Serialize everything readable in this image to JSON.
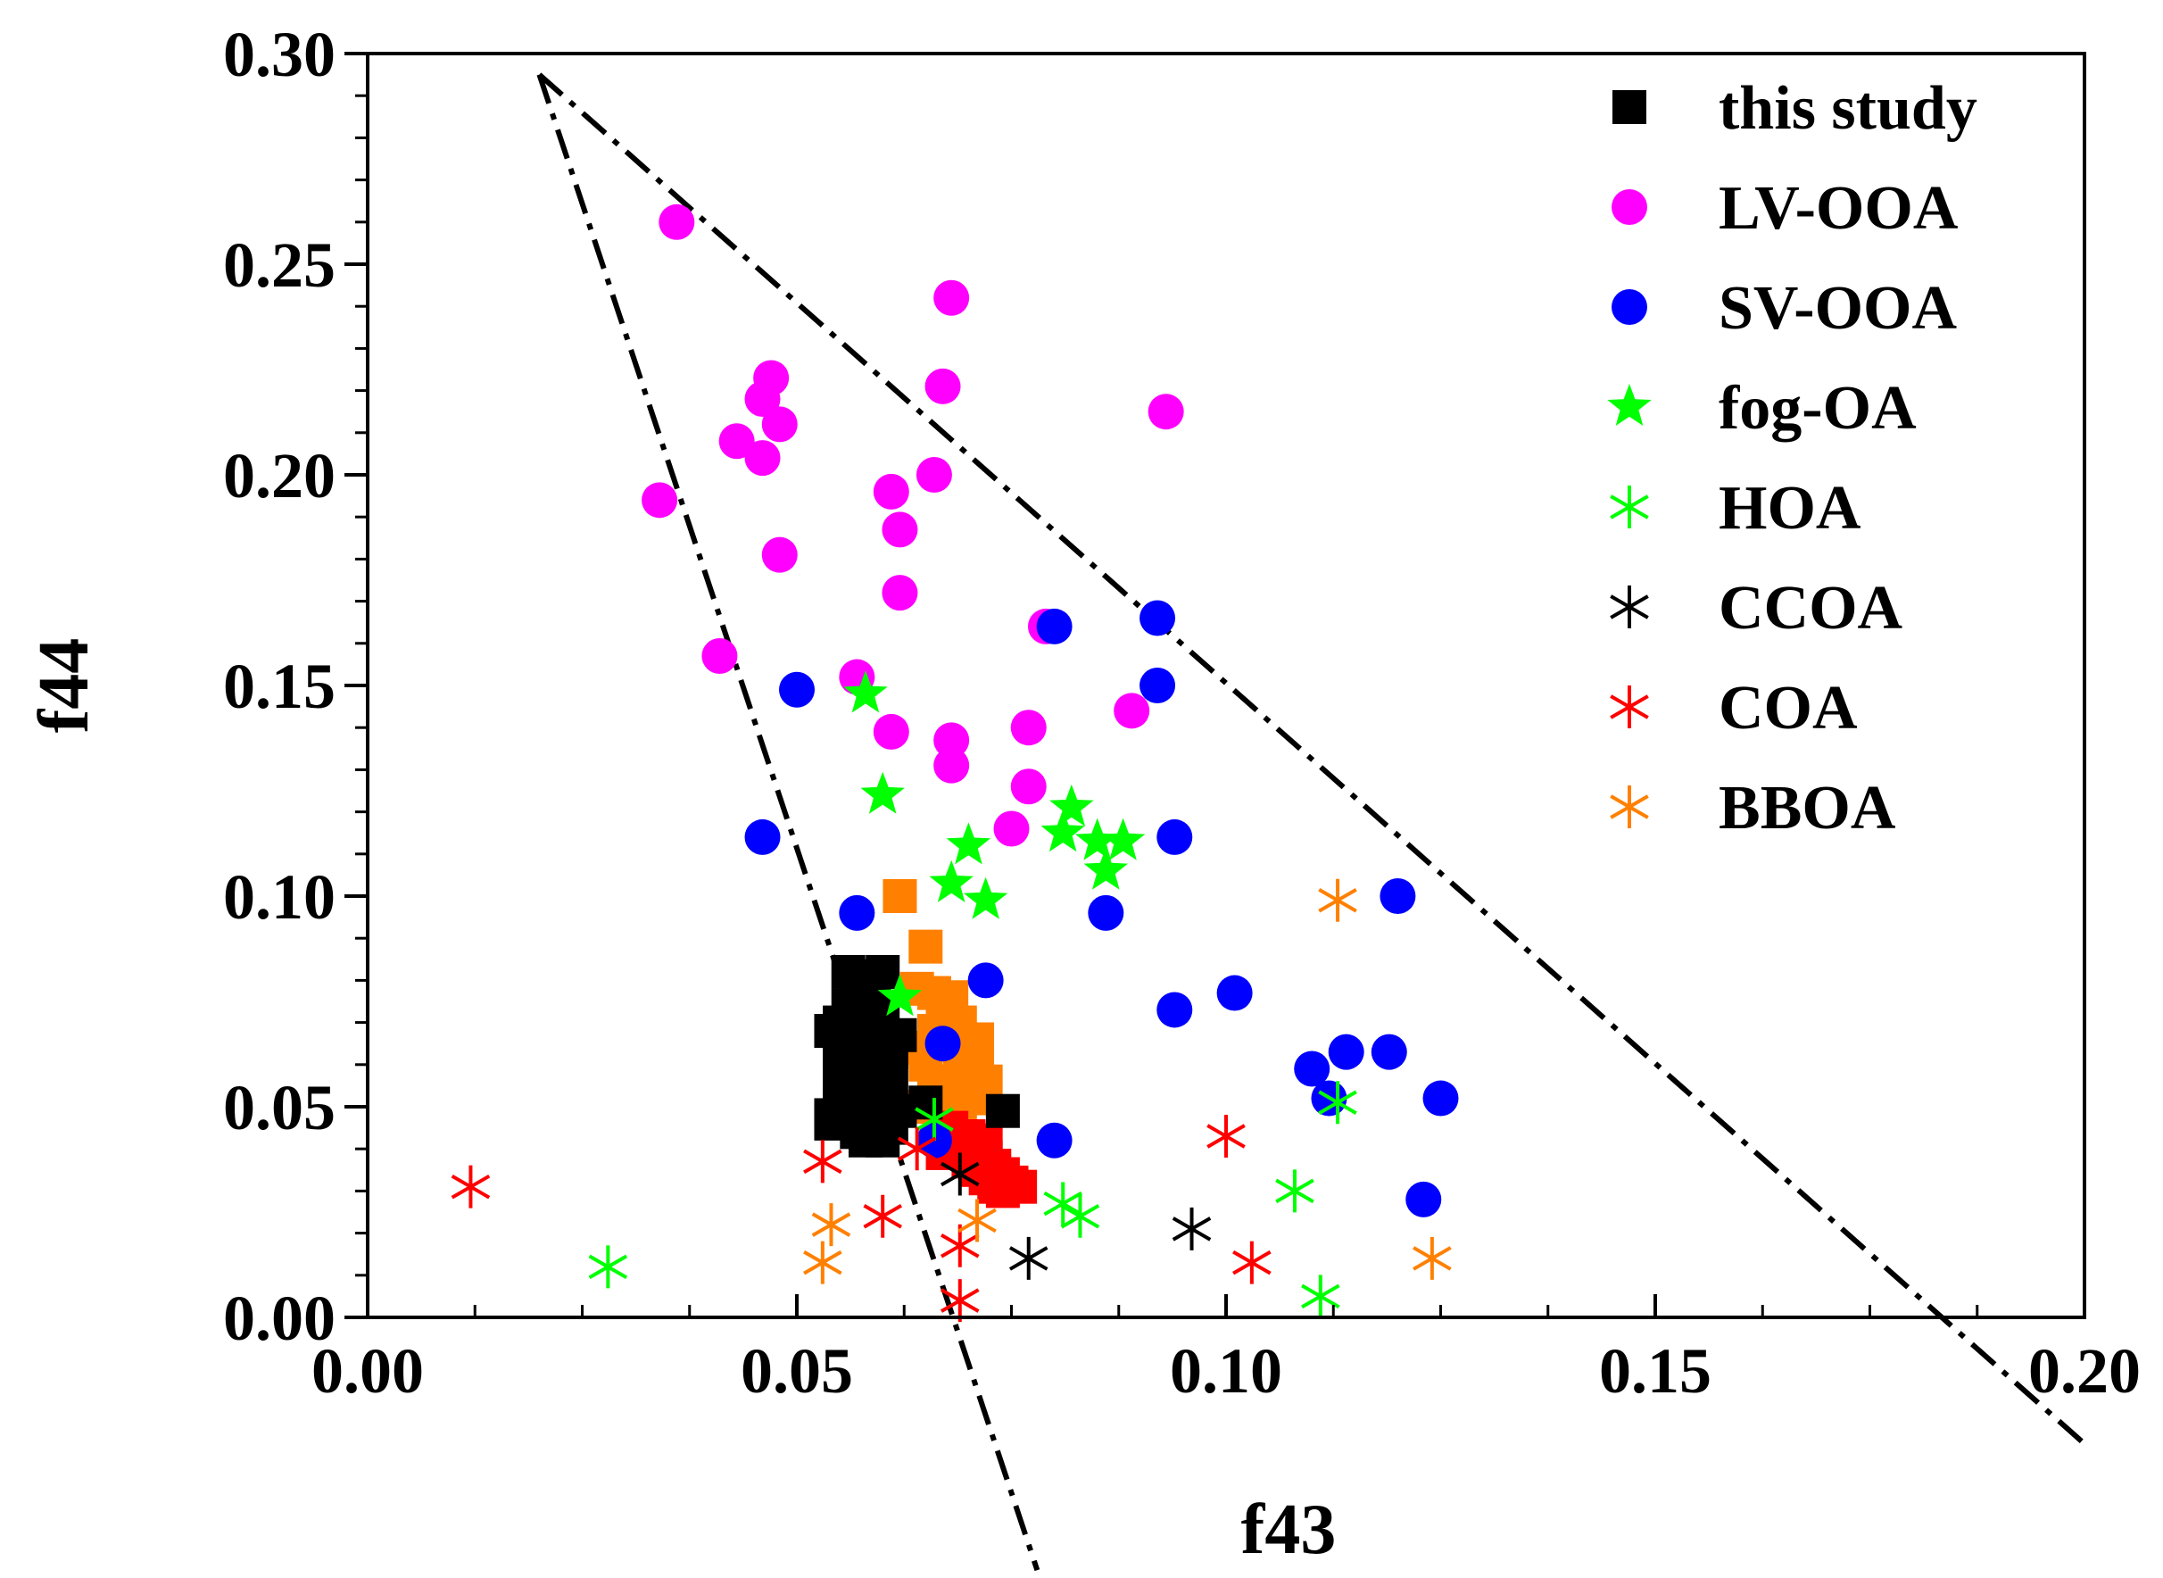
{
  "chart_data": {
    "type": "scatter",
    "title": "",
    "xlabel": "f43",
    "ylabel": "f44",
    "xlim": [
      0,
      0.2
    ],
    "ylim": [
      0,
      0.3
    ],
    "xticks": [
      "0.00",
      "0.05",
      "0.10",
      "0.15",
      "0.20"
    ],
    "yticks": [
      "0.00",
      "0.05",
      "0.10",
      "0.15",
      "0.20",
      "0.25",
      "0.30"
    ],
    "legend_position": "top-right",
    "guide_lines": [
      {
        "name": "left-boundary",
        "style": "dash-dot",
        "points": [
          [
            0.02,
            0.295
          ],
          [
            0.078,
            -0.06
          ]
        ]
      },
      {
        "name": "right-boundary",
        "style": "dash-dot",
        "points": [
          [
            0.02,
            0.295
          ],
          [
            0.2,
            -0.03
          ]
        ]
      }
    ],
    "series": [
      {
        "name": "this study (orange)",
        "legend": false,
        "marker": "square",
        "color": "#ff8000",
        "points": [
          [
            0.062,
            0.1
          ],
          [
            0.065,
            0.088
          ],
          [
            0.064,
            0.078
          ],
          [
            0.066,
            0.077
          ],
          [
            0.068,
            0.076
          ],
          [
            0.067,
            0.072
          ],
          [
            0.069,
            0.07
          ],
          [
            0.066,
            0.068
          ],
          [
            0.068,
            0.066
          ],
          [
            0.07,
            0.064
          ],
          [
            0.069,
            0.062
          ],
          [
            0.071,
            0.06
          ],
          [
            0.07,
            0.058
          ],
          [
            0.072,
            0.056
          ],
          [
            0.068,
            0.055
          ],
          [
            0.07,
            0.054
          ],
          [
            0.071,
            0.052
          ],
          [
            0.066,
            0.056
          ],
          [
            0.065,
            0.06
          ],
          [
            0.064,
            0.05
          ],
          [
            0.067,
            0.05
          ],
          [
            0.069,
            0.048
          ],
          [
            0.063,
            0.064
          ],
          [
            0.071,
            0.066
          ]
        ]
      },
      {
        "name": "this study (red)",
        "legend": false,
        "marker": "square",
        "color": "#ff0000",
        "points": [
          [
            0.068,
            0.045
          ],
          [
            0.07,
            0.043
          ],
          [
            0.069,
            0.041
          ],
          [
            0.071,
            0.04
          ],
          [
            0.072,
            0.038
          ],
          [
            0.07,
            0.037
          ],
          [
            0.073,
            0.036
          ],
          [
            0.071,
            0.035
          ],
          [
            0.074,
            0.034
          ],
          [
            0.072,
            0.033
          ],
          [
            0.075,
            0.032
          ],
          [
            0.073,
            0.031
          ],
          [
            0.076,
            0.031
          ],
          [
            0.074,
            0.03
          ],
          [
            0.072,
            0.042
          ],
          [
            0.067,
            0.039
          ]
        ]
      },
      {
        "name": "this study",
        "marker": "square",
        "color": "#000000",
        "points": [
          [
            0.056,
            0.082
          ],
          [
            0.058,
            0.081
          ],
          [
            0.059,
            0.08
          ],
          [
            0.06,
            0.082
          ],
          [
            0.057,
            0.078
          ],
          [
            0.059,
            0.076
          ],
          [
            0.056,
            0.074
          ],
          [
            0.058,
            0.072
          ],
          [
            0.06,
            0.072
          ],
          [
            0.055,
            0.07
          ],
          [
            0.057,
            0.069
          ],
          [
            0.059,
            0.068
          ],
          [
            0.054,
            0.068
          ],
          [
            0.056,
            0.066
          ],
          [
            0.058,
            0.065
          ],
          [
            0.06,
            0.066
          ],
          [
            0.062,
            0.067
          ],
          [
            0.055,
            0.063
          ],
          [
            0.057,
            0.062
          ],
          [
            0.059,
            0.062
          ],
          [
            0.061,
            0.063
          ],
          [
            0.056,
            0.06
          ],
          [
            0.058,
            0.059
          ],
          [
            0.06,
            0.059
          ],
          [
            0.055,
            0.057
          ],
          [
            0.057,
            0.056
          ],
          [
            0.059,
            0.056
          ],
          [
            0.061,
            0.056
          ],
          [
            0.056,
            0.054
          ],
          [
            0.058,
            0.053
          ],
          [
            0.06,
            0.053
          ],
          [
            0.055,
            0.051
          ],
          [
            0.057,
            0.05
          ],
          [
            0.059,
            0.05
          ],
          [
            0.054,
            0.048
          ],
          [
            0.056,
            0.047
          ],
          [
            0.058,
            0.047
          ],
          [
            0.06,
            0.048
          ],
          [
            0.062,
            0.049
          ],
          [
            0.054,
            0.046
          ],
          [
            0.057,
            0.044
          ],
          [
            0.059,
            0.044
          ],
          [
            0.061,
            0.045
          ],
          [
            0.058,
            0.042
          ],
          [
            0.06,
            0.042
          ],
          [
            0.065,
            0.051
          ],
          [
            0.074,
            0.049
          ]
        ]
      },
      {
        "name": "LV-OOA",
        "marker": "circle",
        "color": "#ff00ff",
        "points": [
          [
            0.036,
            0.26
          ],
          [
            0.068,
            0.242
          ],
          [
            0.047,
            0.223
          ],
          [
            0.067,
            0.221
          ],
          [
            0.046,
            0.218
          ],
          [
            0.093,
            0.215
          ],
          [
            0.048,
            0.212
          ],
          [
            0.043,
            0.208
          ],
          [
            0.046,
            0.204
          ],
          [
            0.066,
            0.2
          ],
          [
            0.061,
            0.196
          ],
          [
            0.034,
            0.194
          ],
          [
            0.062,
            0.187
          ],
          [
            0.048,
            0.181
          ],
          [
            0.062,
            0.172
          ],
          [
            0.079,
            0.164
          ],
          [
            0.041,
            0.157
          ],
          [
            0.057,
            0.152
          ],
          [
            0.089,
            0.144
          ],
          [
            0.077,
            0.14
          ],
          [
            0.061,
            0.139
          ],
          [
            0.068,
            0.137
          ],
          [
            0.068,
            0.131
          ],
          [
            0.077,
            0.126
          ],
          [
            0.075,
            0.116
          ]
        ]
      },
      {
        "name": "SV-OOA",
        "marker": "circle",
        "color": "#0000ff",
        "points": [
          [
            0.08,
            0.164
          ],
          [
            0.092,
            0.166
          ],
          [
            0.05,
            0.149
          ],
          [
            0.092,
            0.15
          ],
          [
            0.046,
            0.114
          ],
          [
            0.094,
            0.114
          ],
          [
            0.057,
            0.096
          ],
          [
            0.086,
            0.096
          ],
          [
            0.12,
            0.1
          ],
          [
            0.072,
            0.08
          ],
          [
            0.101,
            0.077
          ],
          [
            0.094,
            0.073
          ],
          [
            0.067,
            0.065
          ],
          [
            0.114,
            0.063
          ],
          [
            0.119,
            0.063
          ],
          [
            0.11,
            0.059
          ],
          [
            0.112,
            0.052
          ],
          [
            0.125,
            0.052
          ],
          [
            0.08,
            0.042
          ],
          [
            0.066,
            0.042
          ],
          [
            0.123,
            0.028
          ]
        ]
      },
      {
        "name": "fog-OA",
        "marker": "star",
        "color": "#00ff00",
        "points": [
          [
            0.058,
            0.148
          ],
          [
            0.06,
            0.124
          ],
          [
            0.082,
            0.121
          ],
          [
            0.07,
            0.112
          ],
          [
            0.081,
            0.115
          ],
          [
            0.085,
            0.113
          ],
          [
            0.088,
            0.113
          ],
          [
            0.086,
            0.106
          ],
          [
            0.068,
            0.103
          ],
          [
            0.072,
            0.099
          ],
          [
            0.062,
            0.076
          ]
        ]
      },
      {
        "name": "HOA",
        "marker": "asterisk",
        "color": "#00ff00",
        "points": [
          [
            0.028,
            0.012
          ],
          [
            0.113,
            0.051
          ],
          [
            0.066,
            0.047
          ],
          [
            0.108,
            0.03
          ],
          [
            0.081,
            0.027
          ],
          [
            0.083,
            0.024
          ],
          [
            0.111,
            0.005
          ]
        ]
      },
      {
        "name": "CCOA",
        "marker": "asterisk",
        "color": "#000000",
        "points": [
          [
            0.069,
            0.034
          ],
          [
            0.096,
            0.021
          ],
          [
            0.077,
            0.014
          ]
        ]
      },
      {
        "name": "COA",
        "marker": "asterisk",
        "color": "#ff0000",
        "points": [
          [
            0.012,
            0.031
          ],
          [
            0.053,
            0.037
          ],
          [
            0.064,
            0.04
          ],
          [
            0.1,
            0.043
          ],
          [
            0.06,
            0.024
          ],
          [
            0.069,
            0.017
          ],
          [
            0.103,
            0.013
          ],
          [
            0.069,
            0.004
          ]
        ]
      },
      {
        "name": "BBOA",
        "marker": "asterisk",
        "color": "#ff8000",
        "points": [
          [
            0.113,
            0.099
          ],
          [
            0.071,
            0.023
          ],
          [
            0.054,
            0.022
          ],
          [
            0.053,
            0.013
          ],
          [
            0.124,
            0.014
          ]
        ]
      }
    ]
  }
}
